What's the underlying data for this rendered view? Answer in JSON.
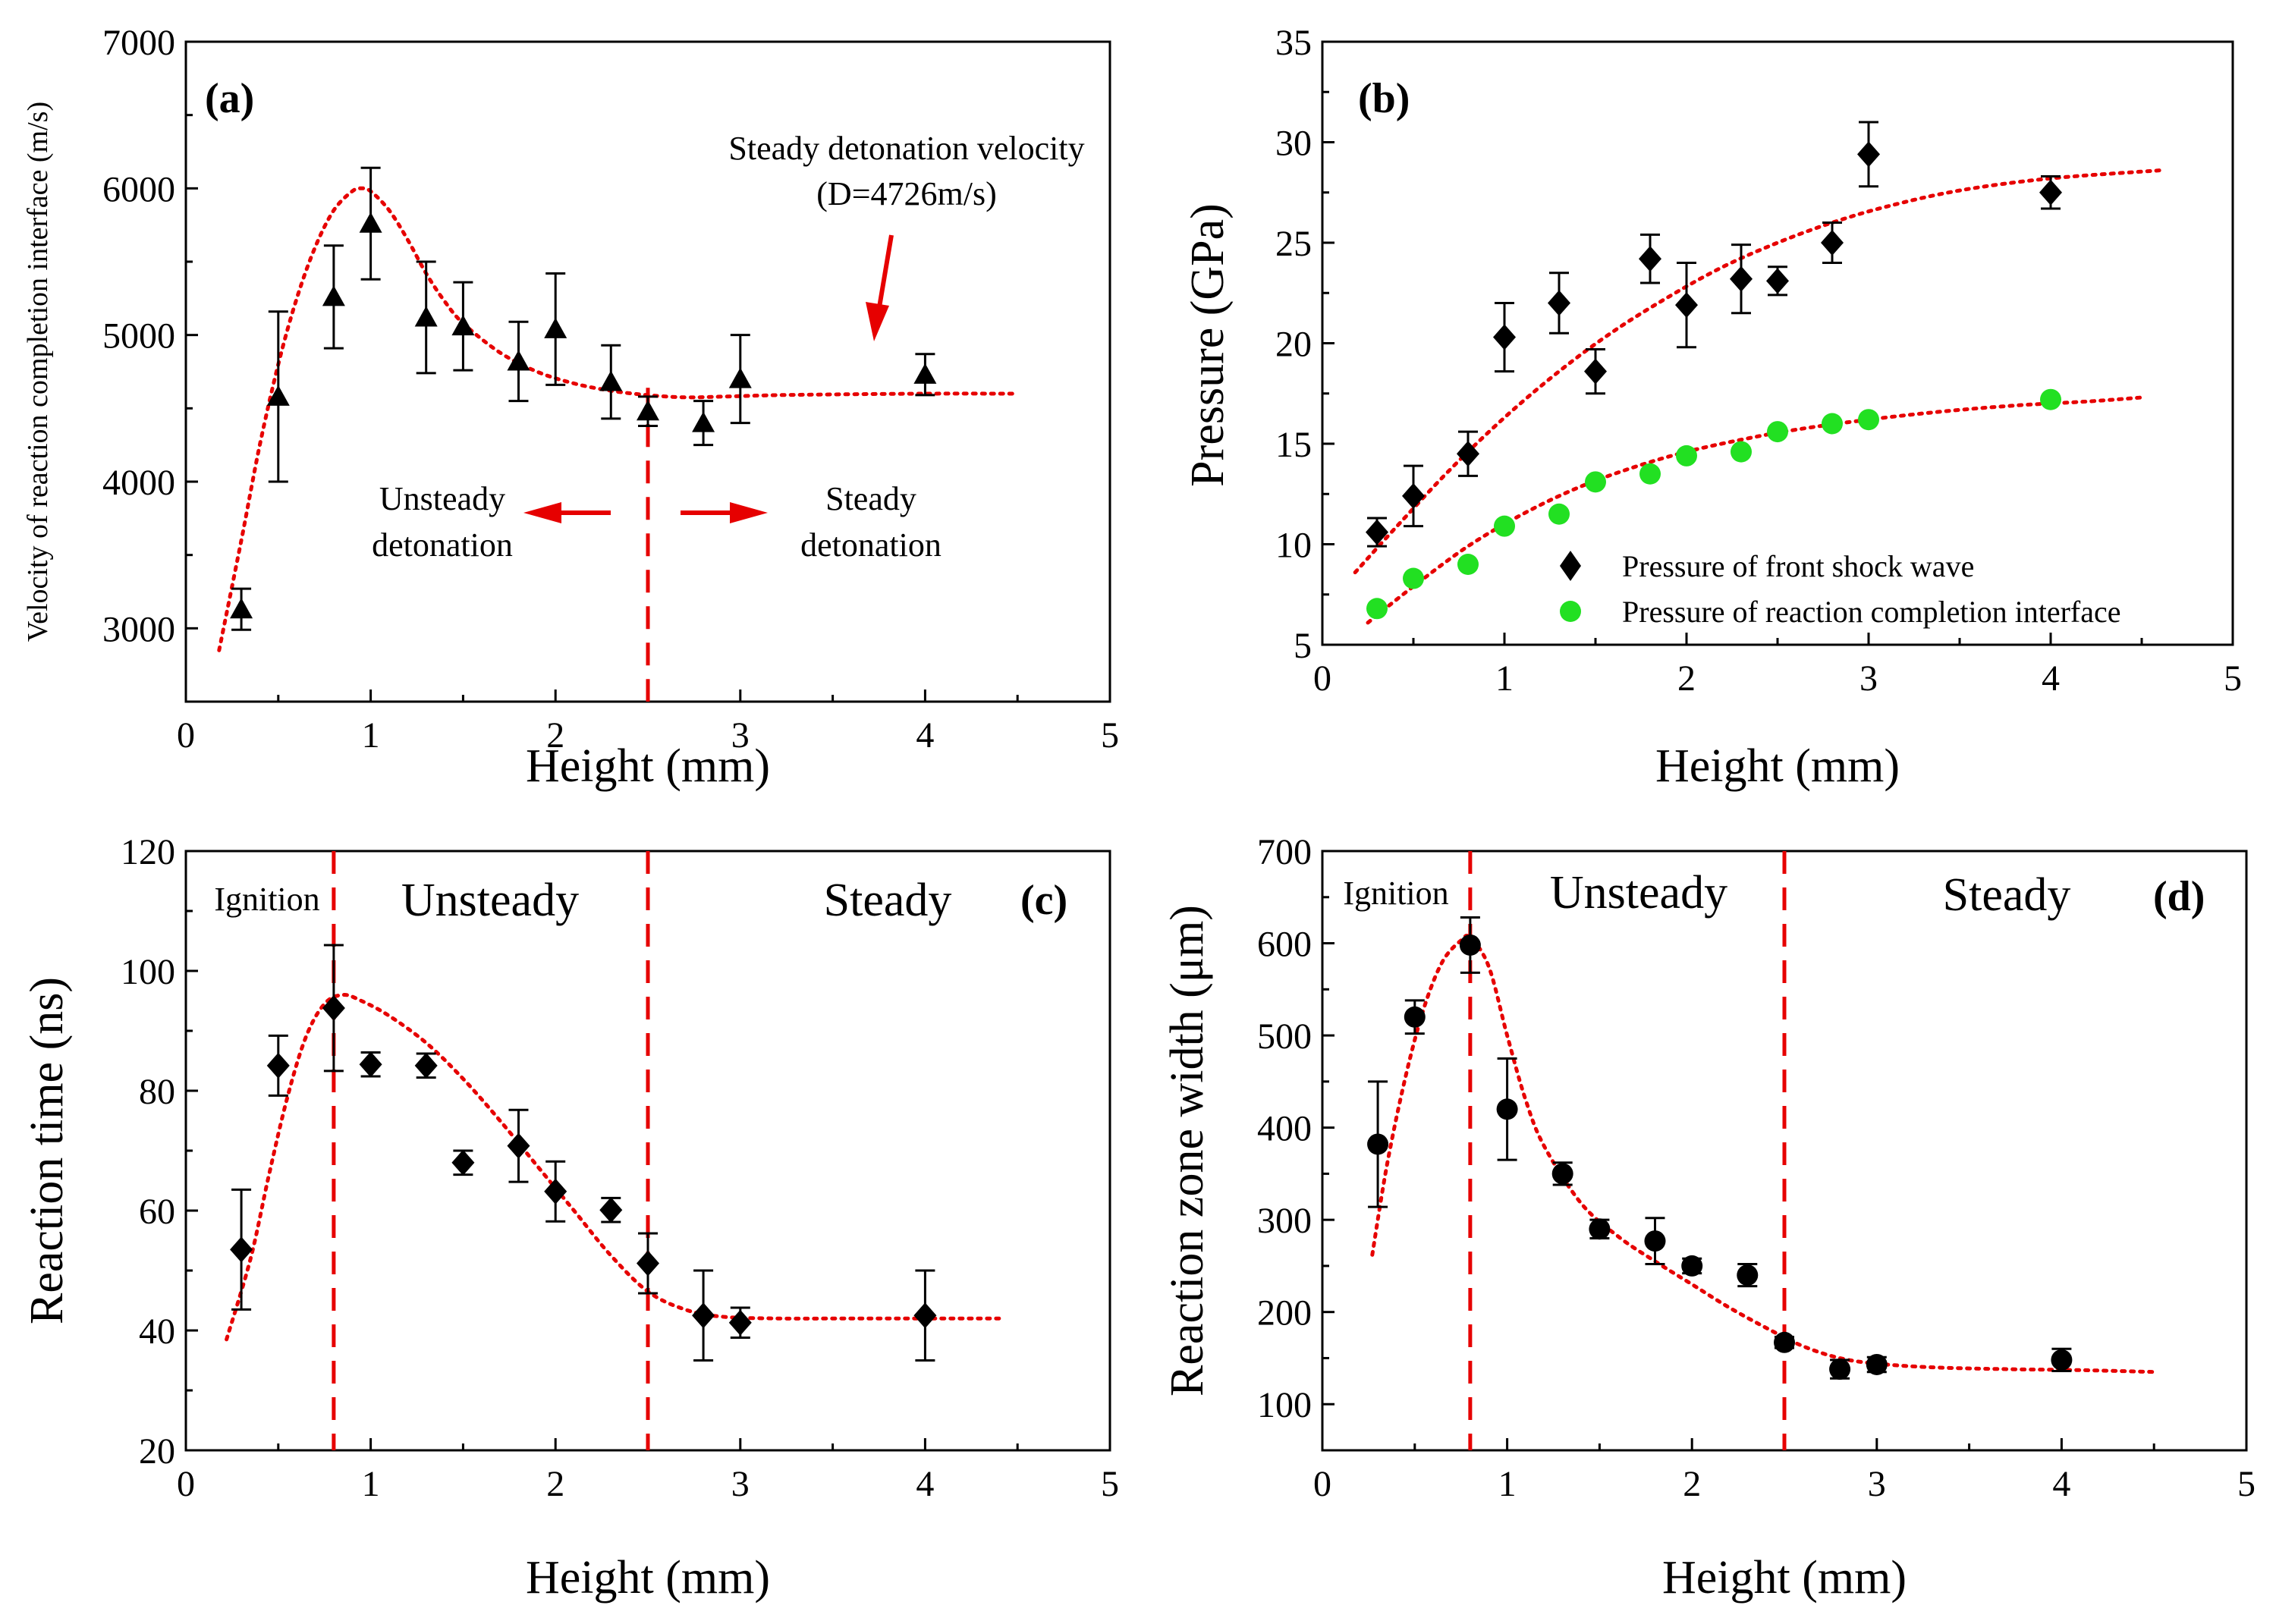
{
  "chart_data": [
    {
      "id": "a",
      "type": "scatter",
      "panel_label": "(a)",
      "xlabel": "Height (mm)",
      "ylabel": "Velocity of reaction completion interface (m/s)",
      "xlim": [
        0,
        5
      ],
      "ylim": [
        2500,
        7000
      ],
      "xticks": [
        0,
        1,
        2,
        3,
        4,
        5
      ],
      "yticks": [
        3000,
        4000,
        5000,
        6000,
        7000
      ],
      "series": [
        {
          "name": "Velocity of reaction completion interface",
          "marker": "triangle",
          "color": "#000000",
          "x": [
            0.3,
            0.5,
            0.8,
            1.0,
            1.3,
            1.5,
            1.8,
            2.0,
            2.3,
            2.5,
            2.8,
            3.0,
            4.0
          ],
          "y": [
            3130,
            4580,
            5260,
            5760,
            5120,
            5060,
            4820,
            5040,
            4680,
            4480,
            4400,
            4700,
            4730
          ],
          "err": [
            140,
            580,
            350,
            380,
            380,
            300,
            270,
            380,
            250,
            100,
            150,
            300,
            140
          ]
        }
      ],
      "fit": {
        "color": "#e60000",
        "x": [
          0.18,
          0.3,
          0.4,
          0.5,
          0.6,
          0.7,
          0.8,
          0.9,
          0.95,
          1.0,
          1.1,
          1.2,
          1.3,
          1.4,
          1.5,
          1.7,
          1.9,
          2.1,
          2.3,
          2.5,
          2.7,
          2.9,
          3.2,
          3.5,
          4.0,
          4.5
        ],
        "y": [
          2850,
          3600,
          4250,
          4800,
          5250,
          5600,
          5850,
          5980,
          6000,
          5980,
          5850,
          5650,
          5420,
          5230,
          5080,
          4880,
          4750,
          4670,
          4620,
          4590,
          4575,
          4580,
          4590,
          4595,
          4600,
          4600
        ]
      },
      "annotations": {
        "steady_velocity": "Steady detonation velocity",
        "steady_velocity_value": "(D=4726m/s)",
        "unsteady_1": "Unsteady",
        "unsteady_2": "detonation",
        "steady_1": "Steady",
        "steady_2": "detonation"
      },
      "vlines": [
        2.5
      ]
    },
    {
      "id": "b",
      "type": "scatter",
      "panel_label": "(b)",
      "xlabel": "Height (mm)",
      "ylabel": "Pressure (GPa)",
      "xlim": [
        0,
        5
      ],
      "ylim": [
        5,
        35
      ],
      "xticks": [
        0,
        1,
        2,
        3,
        4,
        5
      ],
      "yticks": [
        5,
        10,
        15,
        20,
        25,
        30,
        35
      ],
      "series": [
        {
          "name": "Pressure of front shock wave",
          "marker": "diamond",
          "color": "#000000",
          "x": [
            0.3,
            0.5,
            0.8,
            1.0,
            1.3,
            1.5,
            1.8,
            2.0,
            2.3,
            2.5,
            2.8,
            3.0,
            4.0
          ],
          "y": [
            10.6,
            12.4,
            14.5,
            20.3,
            22.0,
            18.6,
            24.2,
            21.9,
            23.2,
            23.1,
            25.0,
            29.4,
            27.5
          ],
          "err": [
            0.7,
            1.5,
            1.1,
            1.7,
            1.5,
            1.1,
            1.2,
            2.1,
            1.7,
            0.7,
            1.0,
            1.6,
            0.8
          ]
        },
        {
          "name": "Pressure of reaction completion interface",
          "marker": "circle",
          "color": "#22e022",
          "x": [
            0.3,
            0.5,
            0.8,
            1.0,
            1.3,
            1.5,
            1.8,
            2.0,
            2.3,
            2.5,
            2.8,
            3.0,
            4.0
          ],
          "y": [
            6.8,
            8.3,
            9.0,
            10.9,
            11.5,
            13.1,
            13.5,
            14.4,
            14.6,
            15.6,
            16.0,
            16.2,
            17.2
          ],
          "err": [
            0,
            0,
            0,
            0,
            0,
            0,
            0,
            0,
            0,
            0,
            0,
            0,
            0
          ]
        }
      ],
      "fits": [
        {
          "color": "#e60000",
          "x": [
            0.18,
            0.4,
            0.7,
            1.0,
            1.3,
            1.6,
            1.9,
            2.2,
            2.5,
            2.8,
            3.1,
            3.5,
            4.0,
            4.6
          ],
          "y": [
            8.6,
            10.8,
            13.7,
            16.3,
            18.6,
            20.6,
            22.3,
            23.8,
            25.0,
            26.0,
            26.8,
            27.6,
            28.2,
            28.6
          ]
        },
        {
          "color": "#e60000",
          "x": [
            0.25,
            0.5,
            0.8,
            1.1,
            1.4,
            1.7,
            2.0,
            2.3,
            2.6,
            3.0,
            3.4,
            3.8,
            4.2,
            4.5
          ],
          "y": [
            6.1,
            7.9,
            9.9,
            11.5,
            12.8,
            13.8,
            14.6,
            15.2,
            15.7,
            16.2,
            16.6,
            16.9,
            17.1,
            17.3
          ]
        }
      ],
      "legend": {
        "position": "bottom-right",
        "entries": [
          "Pressure of front shock wave",
          "Pressure of reaction completion interface"
        ]
      }
    },
    {
      "id": "c",
      "type": "scatter",
      "panel_label": "(c)",
      "xlabel": "Height (mm)",
      "ylabel": "Reaction time (ns)",
      "xlim": [
        0,
        5
      ],
      "ylim": [
        20,
        120
      ],
      "xticks": [
        0,
        1,
        2,
        3,
        4,
        5
      ],
      "yticks": [
        20,
        40,
        60,
        80,
        100,
        120
      ],
      "series": [
        {
          "name": "Reaction time",
          "marker": "diamond",
          "color": "#000000",
          "x": [
            0.3,
            0.5,
            0.8,
            1.0,
            1.3,
            1.5,
            1.8,
            2.0,
            2.3,
            2.5,
            2.8,
            3.0,
            4.0
          ],
          "y": [
            53.5,
            84.2,
            93.8,
            84.4,
            84.2,
            68.0,
            70.8,
            63.2,
            60.1,
            51.2,
            42.5,
            41.3,
            42.5
          ],
          "err": [
            10,
            5,
            10.5,
            2,
            2,
            2,
            6,
            5,
            2,
            5,
            7.5,
            2.5,
            7.5
          ]
        }
      ],
      "fit": {
        "color": "#e60000",
        "x": [
          0.22,
          0.35,
          0.45,
          0.55,
          0.65,
          0.75,
          0.85,
          0.95,
          1.1,
          1.3,
          1.5,
          1.7,
          1.9,
          2.1,
          2.3,
          2.5,
          2.7,
          2.9,
          3.2,
          3.6,
          4.0,
          4.4
        ],
        "y": [
          38.5,
          52,
          66,
          79,
          89,
          94.5,
          96,
          95,
          92.5,
          88,
          82,
          75,
          67.5,
          60,
          52.5,
          46.5,
          43.5,
          42.3,
          42,
          42,
          42,
          42
        ]
      },
      "annotations": {
        "ignition": "Ignition",
        "unsteady": "Unsteady",
        "steady": "Steady"
      },
      "vlines": [
        0.8,
        2.5
      ]
    },
    {
      "id": "d",
      "type": "scatter",
      "panel_label": "(d)",
      "xlabel": "Height (mm)",
      "ylabel": "Reaction zone width (μm)",
      "xlim": [
        0,
        5
      ],
      "ylim": [
        50,
        700
      ],
      "xticks": [
        0,
        1,
        2,
        3,
        4,
        5
      ],
      "yticks": [
        100,
        200,
        300,
        400,
        500,
        600,
        700
      ],
      "series": [
        {
          "name": "Reaction zone width",
          "marker": "circle",
          "color": "#000000",
          "x": [
            0.3,
            0.5,
            0.8,
            1.0,
            1.3,
            1.5,
            1.8,
            2.0,
            2.3,
            2.5,
            2.8,
            3.0,
            4.0
          ],
          "y": [
            382,
            520,
            598,
            420,
            350,
            290,
            277,
            250,
            240,
            167,
            138,
            143,
            148
          ],
          "err": [
            68,
            18,
            30,
            55,
            12,
            10,
            25,
            8,
            12,
            6,
            10,
            8,
            12
          ]
        }
      ],
      "fit": {
        "color": "#e60000",
        "x": [
          0.27,
          0.35,
          0.45,
          0.55,
          0.65,
          0.75,
          0.8,
          0.9,
          1.0,
          1.1,
          1.2,
          1.4,
          1.6,
          1.8,
          2.0,
          2.2,
          2.4,
          2.6,
          2.8,
          3.0,
          3.3,
          3.7,
          4.1,
          4.5
        ],
        "y": [
          262,
          360,
          455,
          530,
          580,
          603,
          606,
          575,
          500,
          430,
          380,
          318,
          282,
          255,
          230,
          205,
          183,
          163,
          150,
          144,
          140,
          138,
          137,
          135
        ]
      },
      "annotations": {
        "ignition": "Ignition",
        "unsteady": "Unsteady",
        "steady": "Steady"
      },
      "vlines": [
        0.8,
        2.5
      ]
    }
  ]
}
